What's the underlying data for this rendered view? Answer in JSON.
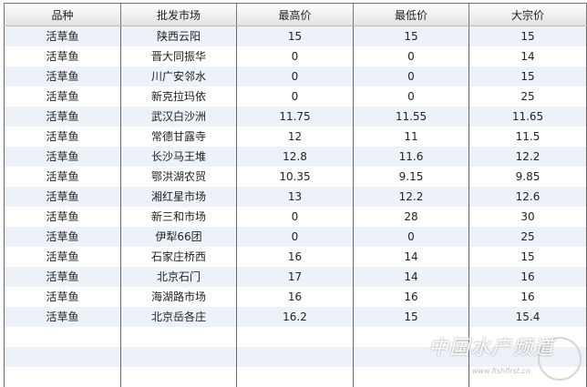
{
  "headers": [
    "品种",
    "批发市场",
    "最高价",
    "最低价",
    "大宗价"
  ],
  "rows": [
    [
      "活草鱼",
      "陕西云阳",
      "15",
      "15",
      "15"
    ],
    [
      "活草鱼",
      "晋大同振华",
      "0",
      "0",
      "14"
    ],
    [
      "活草鱼",
      "川广安邻水",
      "0",
      "0",
      "15"
    ],
    [
      "活草鱼",
      "新克拉玛依",
      "0",
      "0",
      "25"
    ],
    [
      "活草鱼",
      "武汉白沙洲",
      "11.75",
      "11.55",
      "11.65"
    ],
    [
      "活草鱼",
      "常德甘露寺",
      "12",
      "11",
      "11.5"
    ],
    [
      "活草鱼",
      "长沙马王堆",
      "12.8",
      "11.6",
      "12.2"
    ],
    [
      "活草鱼",
      "鄂洪湖农贸",
      "10.35",
      "9.15",
      "9.85"
    ],
    [
      "活草鱼",
      "湘红星市场",
      "13",
      "12.2",
      "12.6"
    ],
    [
      "活草鱼",
      "新三和市场",
      "0",
      "28",
      "30"
    ],
    [
      "活草鱼",
      "伊犁66团",
      "0",
      "0",
      "25"
    ],
    [
      "活草鱼",
      "石家庄桥西",
      "16",
      "14",
      "15"
    ],
    [
      "活草鱼",
      "北京石门",
      "17",
      "14",
      "16"
    ],
    [
      "活草鱼",
      "海湖路市场",
      "16",
      "16",
      "16"
    ],
    [
      "活草鱼",
      "北京岳各庄",
      "16.2",
      "15",
      "15.4"
    ]
  ],
  "empty_rows": 3,
  "watermark": {
    "title": "中国水产频道",
    "url": "www.fishfirst.cn"
  }
}
